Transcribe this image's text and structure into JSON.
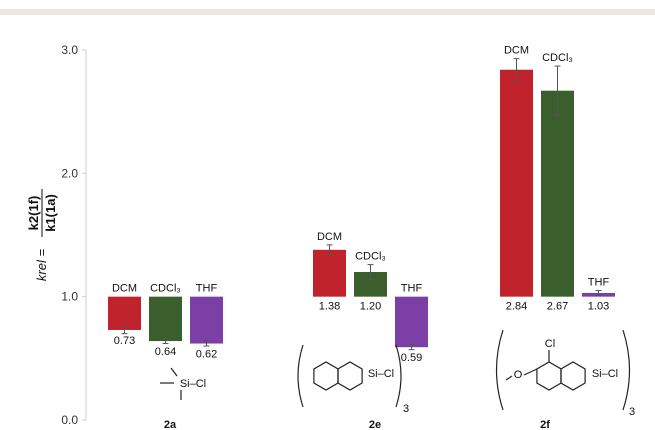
{
  "chart_data": {
    "type": "bar",
    "categories": [
      "2a",
      "2e",
      "2f"
    ],
    "baseline": 1.0,
    "ylim": [
      0,
      3
    ],
    "yticks": [
      "0.0",
      "1.0",
      "2.0",
      "3.0"
    ],
    "ylabel_lhs": "krel",
    "ylabel_num": "k2(1f)",
    "ylabel_den": "k1(1a)",
    "series": [
      {
        "name": "DCM",
        "color": "#c0232b",
        "values": [
          0.73,
          1.38,
          2.84
        ],
        "errors": [
          0.03,
          0.04,
          0.09
        ],
        "value_labels": [
          "0.73",
          "1.38",
          "2.84"
        ]
      },
      {
        "name": "CDCl3",
        "color": "#3a5e2c",
        "values": [
          0.64,
          1.2,
          2.67
        ],
        "errors": [
          0.02,
          0.06,
          0.2
        ],
        "value_labels": [
          "0.64",
          "1.20",
          "2.67"
        ]
      },
      {
        "name": "THF",
        "color": "#7b3fa6",
        "values": [
          0.62,
          0.59,
          1.03
        ],
        "errors": [
          0.02,
          0.02,
          0.02
        ],
        "value_labels": [
          "0.62",
          "0.59",
          "1.03"
        ]
      }
    ],
    "structures": {
      "2a": "Si–Cl",
      "2e": "Si–Cl",
      "2e_sub": "3",
      "2f_cl": "Cl",
      "2f": "Si–Cl",
      "2f_sub": "3"
    },
    "grid": false
  }
}
